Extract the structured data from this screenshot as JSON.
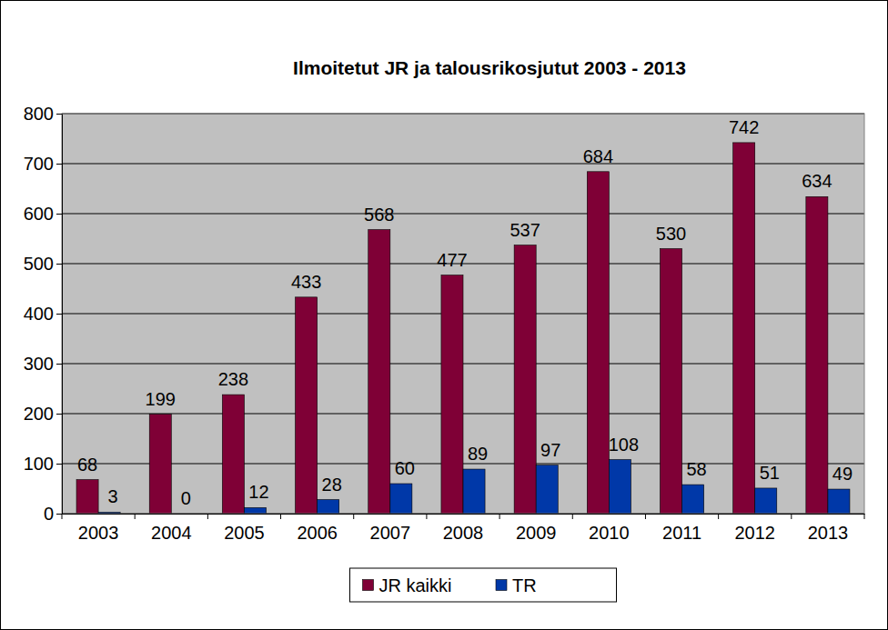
{
  "chart_data": {
    "type": "bar",
    "title": "Ilmoitetut JR ja talousrikosjutut 2003 - 2013",
    "categories": [
      "2003",
      "2004",
      "2005",
      "2006",
      "2007",
      "2008",
      "2009",
      "2010",
      "2011",
      "2012",
      "2013"
    ],
    "series": [
      {
        "name": "JR kaikki",
        "color": "#7f0036",
        "values": [
          68,
          199,
          238,
          433,
          568,
          477,
          537,
          684,
          530,
          742,
          634
        ]
      },
      {
        "name": "TR",
        "color": "#0038a8",
        "values": [
          3,
          0,
          12,
          28,
          60,
          89,
          97,
          108,
          58,
          51,
          49
        ]
      }
    ],
    "ylim": [
      0,
      800
    ],
    "yticks": [
      0,
      100,
      200,
      300,
      400,
      500,
      600,
      700,
      800
    ],
    "grid": true,
    "data_labels": true,
    "legend": "bottom"
  }
}
